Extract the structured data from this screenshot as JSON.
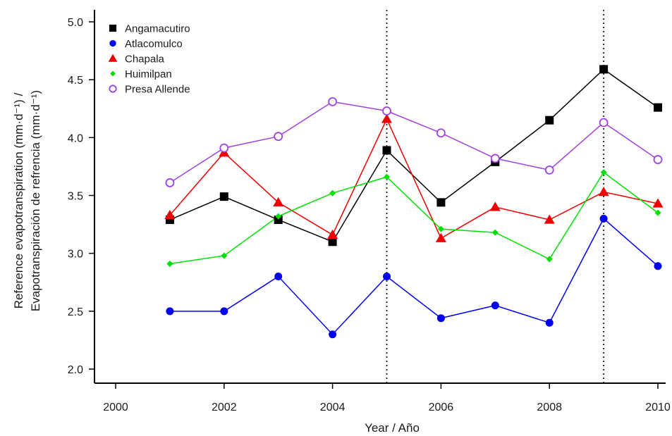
{
  "chart_data": {
    "type": "line",
    "xlabel": "Year / Año",
    "ylabel_line1": "Reference evapotranspiration (mm·d⁻¹) /",
    "ylabel_line2": "Evapotranspiración de refrencia (mm·d⁻¹)",
    "xlim": [
      2000,
      2010
    ],
    "ylim": [
      2.0,
      5.0
    ],
    "x_ticks": [
      2000,
      2002,
      2004,
      2006,
      2008,
      2010
    ],
    "y_ticks": [
      2.0,
      2.5,
      3.0,
      3.5,
      4.0,
      4.5,
      5.0
    ],
    "y_tick_labels": [
      "2.0",
      "2.5",
      "3.0",
      "3.5",
      "4.0",
      "4.5",
      "5.0"
    ],
    "reference_lines_x": [
      2005,
      2009
    ],
    "grid": false,
    "legend_position": "top-left",
    "x": [
      2001,
      2002,
      2003,
      2004,
      2005,
      2006,
      2007,
      2008,
      2009,
      2010
    ],
    "series": [
      {
        "name": "Angamacutiro",
        "color": "#000000",
        "marker": "square",
        "values": [
          3.29,
          3.49,
          3.29,
          3.1,
          3.89,
          3.44,
          3.79,
          4.15,
          4.59,
          4.26
        ]
      },
      {
        "name": "Atlacomulco",
        "color": "#0000ee",
        "marker": "circle",
        "values": [
          2.5,
          2.5,
          2.8,
          2.3,
          2.8,
          2.44,
          2.55,
          2.4,
          3.3,
          2.89
        ]
      },
      {
        "name": "Chapala",
        "color": "#ee0000",
        "marker": "triangle",
        "values": [
          3.33,
          3.87,
          3.44,
          3.16,
          4.16,
          3.13,
          3.4,
          3.29,
          3.53,
          3.43
        ]
      },
      {
        "name": "Huimilpan",
        "color": "#00e000",
        "marker": "diamond",
        "values": [
          2.91,
          2.98,
          3.32,
          3.52,
          3.66,
          3.21,
          3.18,
          2.95,
          3.7,
          3.35
        ]
      },
      {
        "name": "Presa Allende",
        "color": "#a040e0",
        "marker": "open-circle",
        "values": [
          3.61,
          3.91,
          4.01,
          4.31,
          4.23,
          4.04,
          3.82,
          3.72,
          4.13,
          3.81
        ]
      }
    ]
  }
}
